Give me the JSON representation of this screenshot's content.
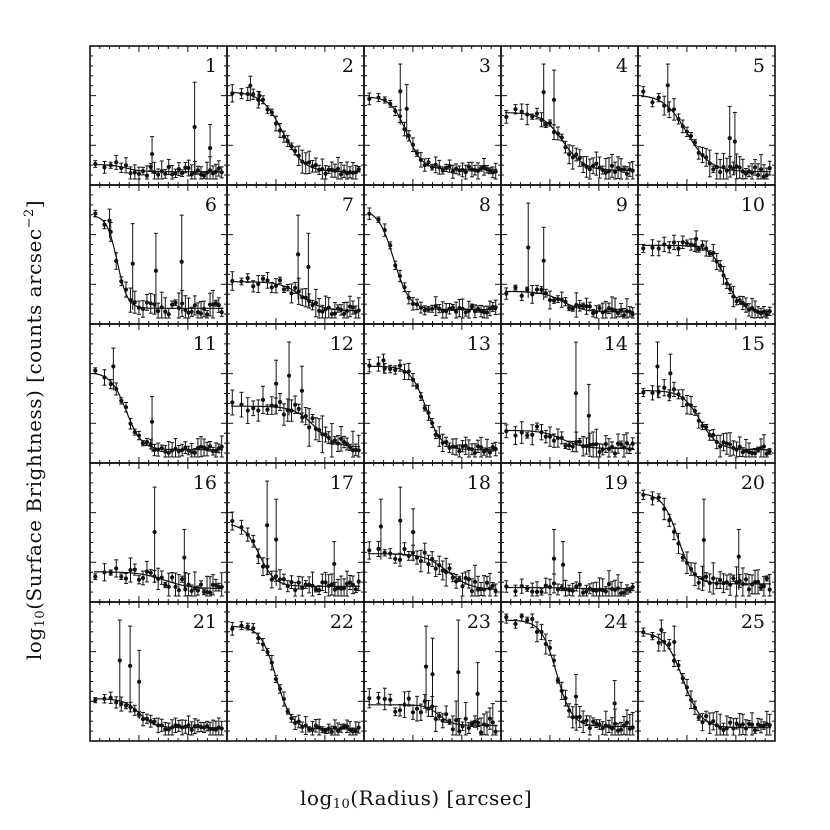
{
  "chart_data": {
    "type": "scatter",
    "layout": "5x5 grid of panels with shared axes",
    "xlabel": {
      "prefix": "log",
      "sub": "10",
      "rest": "(Radius) [arcsec]"
    },
    "ylabel": {
      "prefix": "log",
      "sub": "10",
      "mid": "(Surface Brightness) [counts arcsec",
      "sup": "−2",
      "end": "]"
    },
    "panel_labels": [
      "1",
      "2",
      "3",
      "4",
      "5",
      "6",
      "7",
      "8",
      "9",
      "10",
      "11",
      "12",
      "13",
      "14",
      "15",
      "16",
      "17",
      "18",
      "19",
      "20",
      "21",
      "22",
      "23",
      "24",
      "25"
    ],
    "panels": [
      {
        "label": "1",
        "model": {
          "plateau": 0.12,
          "floor": 0.06,
          "r0": 0.25,
          "sharp": 0.06
        },
        "noise": 0.08,
        "spikes": [
          [
            0.45,
            0.35
          ],
          [
            0.78,
            0.8
          ],
          [
            0.9,
            0.45
          ]
        ]
      },
      {
        "label": "2",
        "model": {
          "plateau": 0.72,
          "floor": 0.06,
          "r0": 0.4,
          "sharp": 0.08
        },
        "noise": 0.07,
        "spikes": [
          [
            0.15,
            0.85
          ],
          [
            0.22,
            0.72
          ]
        ]
      },
      {
        "label": "3",
        "model": {
          "plateau": 0.68,
          "floor": 0.08,
          "r0": 0.3,
          "sharp": 0.06
        },
        "noise": 0.05,
        "spikes": [
          [
            0.25,
            0.95
          ],
          [
            0.3,
            0.78
          ]
        ]
      },
      {
        "label": "4",
        "model": {
          "plateau": 0.55,
          "floor": 0.07,
          "r0": 0.45,
          "sharp": 0.08
        },
        "noise": 0.08,
        "spikes": [
          [
            0.3,
            0.95
          ],
          [
            0.38,
            0.9
          ]
        ]
      },
      {
        "label": "5",
        "model": {
          "plateau": 0.7,
          "floor": 0.06,
          "r0": 0.35,
          "sharp": 0.09
        },
        "noise": 0.09,
        "spikes": [
          [
            0.2,
            0.95
          ],
          [
            0.68,
            0.6
          ],
          [
            0.72,
            0.55
          ]
        ]
      },
      {
        "label": "6",
        "model": {
          "plateau": 0.85,
          "floor": 0.08,
          "r0": 0.18,
          "sharp": 0.04
        },
        "noise": 0.1,
        "spikes": [
          [
            0.12,
            0.9
          ],
          [
            0.3,
            0.78
          ],
          [
            0.48,
            0.7
          ],
          [
            0.68,
            0.85
          ]
        ]
      },
      {
        "label": "7",
        "model": {
          "plateau": 0.3,
          "floor": 0.06,
          "r0": 0.55,
          "sharp": 0.08
        },
        "noise": 0.08,
        "spikes": [
          [
            0.52,
            0.85
          ],
          [
            0.6,
            0.7
          ]
        ]
      },
      {
        "label": "8",
        "model": {
          "plateau": 0.9,
          "floor": 0.07,
          "r0": 0.2,
          "sharp": 0.06
        },
        "noise": 0.05,
        "spikes": []
      },
      {
        "label": "9",
        "model": {
          "plateau": 0.22,
          "floor": 0.05,
          "r0": 0.45,
          "sharp": 0.08
        },
        "noise": 0.07,
        "spikes": [
          [
            0.18,
            0.95
          ],
          [
            0.3,
            0.75
          ]
        ]
      },
      {
        "label": "10",
        "model": {
          "plateau": 0.6,
          "floor": 0.05,
          "r0": 0.65,
          "sharp": 0.06
        },
        "noise": 0.06,
        "spikes": [
          [
            0.42,
            0.72
          ]
        ]
      },
      {
        "label": "11",
        "model": {
          "plateau": 0.7,
          "floor": 0.06,
          "r0": 0.25,
          "sharp": 0.06
        },
        "noise": 0.06,
        "spikes": [
          [
            0.15,
            0.9
          ],
          [
            0.45,
            0.5
          ]
        ]
      },
      {
        "label": "12",
        "model": {
          "plateau": 0.42,
          "floor": 0.08,
          "r0": 0.65,
          "sharp": 0.08
        },
        "noise": 0.12,
        "spikes": [
          [
            0.35,
            0.8
          ],
          [
            0.45,
            0.95
          ],
          [
            0.55,
            0.75
          ]
        ]
      },
      {
        "label": "13",
        "model": {
          "plateau": 0.75,
          "floor": 0.06,
          "r0": 0.45,
          "sharp": 0.06
        },
        "noise": 0.06,
        "spikes": [
          [
            0.12,
            0.85
          ]
        ]
      },
      {
        "label": "14",
        "model": {
          "plateau": 0.22,
          "floor": 0.07,
          "r0": 0.45,
          "sharp": 0.08
        },
        "noise": 0.09,
        "spikes": [
          [
            0.55,
            0.95
          ],
          [
            0.65,
            0.6
          ]
        ]
      },
      {
        "label": "15",
        "model": {
          "plateau": 0.55,
          "floor": 0.06,
          "r0": 0.45,
          "sharp": 0.07
        },
        "noise": 0.07,
        "spikes": [
          [
            0.12,
            0.95
          ],
          [
            0.22,
            0.85
          ]
        ]
      },
      {
        "label": "16",
        "model": {
          "plateau": 0.2,
          "floor": 0.06,
          "r0": 0.55,
          "sharp": 0.1
        },
        "noise": 0.1,
        "spikes": [
          [
            0.47,
            0.9
          ],
          [
            0.7,
            0.55
          ]
        ]
      },
      {
        "label": "17",
        "model": {
          "plateau": 0.6,
          "floor": 0.08,
          "r0": 0.22,
          "sharp": 0.06
        },
        "noise": 0.08,
        "spikes": [
          [
            0.28,
            0.95
          ],
          [
            0.35,
            0.8
          ],
          [
            0.8,
            0.45
          ]
        ]
      },
      {
        "label": "18",
        "model": {
          "plateau": 0.35,
          "floor": 0.05,
          "r0": 0.62,
          "sharp": 0.09
        },
        "noise": 0.1,
        "spikes": [
          [
            0.1,
            0.8
          ],
          [
            0.25,
            0.9
          ],
          [
            0.35,
            0.72
          ]
        ]
      },
      {
        "label": "19",
        "model": {
          "plateau": 0.07,
          "floor": 0.06,
          "r0": 0.5,
          "sharp": 0.1
        },
        "noise": 0.08,
        "spikes": [
          [
            0.38,
            0.55
          ],
          [
            0.45,
            0.45
          ]
        ]
      },
      {
        "label": "20",
        "model": {
          "plateau": 0.85,
          "floor": 0.1,
          "r0": 0.28,
          "sharp": 0.06
        },
        "noise": 0.1,
        "spikes": [
          [
            0.48,
            0.8
          ],
          [
            0.75,
            0.55
          ]
        ]
      },
      {
        "label": "21",
        "model": {
          "plateau": 0.3,
          "floor": 0.06,
          "r0": 0.35,
          "sharp": 0.06
        },
        "noise": 0.05,
        "spikes": [
          [
            0.2,
            0.95
          ],
          [
            0.28,
            0.9
          ],
          [
            0.35,
            0.7
          ]
        ]
      },
      {
        "label": "22",
        "model": {
          "plateau": 0.9,
          "floor": 0.05,
          "r0": 0.35,
          "sharp": 0.06
        },
        "noise": 0.05,
        "spikes": []
      },
      {
        "label": "23",
        "model": {
          "plateau": 0.25,
          "floor": 0.08,
          "r0": 0.55,
          "sharp": 0.05
        },
        "noise": 0.12,
        "spikes": [
          [
            0.45,
            0.9
          ],
          [
            0.5,
            0.8
          ],
          [
            0.7,
            0.95
          ],
          [
            0.85,
            0.6
          ]
        ]
      },
      {
        "label": "24",
        "model": {
          "plateau": 0.95,
          "floor": 0.07,
          "r0": 0.4,
          "sharp": 0.06
        },
        "noise": 0.09,
        "spikes": [
          [
            0.55,
            0.5
          ],
          [
            0.85,
            0.45
          ]
        ]
      },
      {
        "label": "25",
        "model": {
          "plateau": 0.85,
          "floor": 0.06,
          "r0": 0.32,
          "sharp": 0.07
        },
        "noise": 0.08,
        "spikes": [
          [
            0.15,
            0.95
          ],
          [
            0.25,
            0.9
          ]
        ]
      }
    ],
    "grid": false,
    "legend": "none",
    "colors": {
      "ink": "#111111",
      "background": "#ffffff"
    }
  }
}
